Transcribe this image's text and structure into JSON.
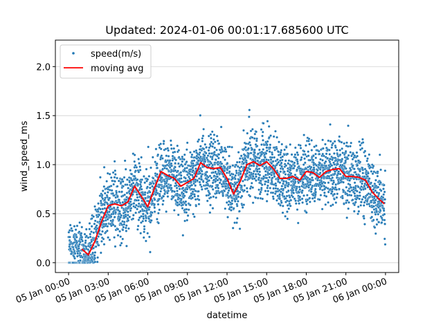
{
  "chart_data": {
    "type": "scatter",
    "title": "Updated: 2024-01-06 00:01:17.685600 UTC",
    "xlabel": "datetime",
    "ylabel": "wind_speed_ms",
    "xlim": [
      "2024-01-04T23:00:00",
      "2024-01-06T01:00:00"
    ],
    "ylim": [
      -0.1,
      2.27
    ],
    "x_ticks": [
      "05 Jan 00:00",
      "05 Jan 03:00",
      "05 Jan 06:00",
      "05 Jan 09:00",
      "05 Jan 12:00",
      "05 Jan 15:00",
      "05 Jan 18:00",
      "05 Jan 21:00",
      "06 Jan 00:00"
    ],
    "y_ticks": [
      "0.0",
      "0.5",
      "1.0",
      "1.5",
      "2.0"
    ],
    "y_tick_values": [
      0.0,
      0.5,
      1.0,
      1.5,
      2.0
    ],
    "grid": "horizontal",
    "legend": {
      "placement": "top-left",
      "entries": [
        "speed(m/s)",
        "moving avg"
      ]
    },
    "colors": {
      "scatter": "#1f77b4",
      "moving_avg": "#ff0000"
    },
    "moving_avg": {
      "name": "moving avg",
      "x": [
        "2024-01-05T01:00:00",
        "2024-01-05T01:30:00",
        "2024-01-05T02:00:00",
        "2024-01-05T02:30:00",
        "2024-01-05T03:00:00",
        "2024-01-05T03:30:00",
        "2024-01-05T04:00:00",
        "2024-01-05T04:30:00",
        "2024-01-05T05:00:00",
        "2024-01-05T05:30:00",
        "2024-01-05T06:00:00",
        "2024-01-05T06:30:00",
        "2024-01-05T07:00:00",
        "2024-01-05T07:30:00",
        "2024-01-05T08:00:00",
        "2024-01-05T08:30:00",
        "2024-01-05T09:00:00",
        "2024-01-05T09:30:00",
        "2024-01-05T10:00:00",
        "2024-01-05T10:30:00",
        "2024-01-05T11:00:00",
        "2024-01-05T11:30:00",
        "2024-01-05T12:00:00",
        "2024-01-05T12:30:00",
        "2024-01-05T13:00:00",
        "2024-01-05T13:30:00",
        "2024-01-05T14:00:00",
        "2024-01-05T14:30:00",
        "2024-01-05T15:00:00",
        "2024-01-05T15:30:00",
        "2024-01-05T16:00:00",
        "2024-01-05T16:30:00",
        "2024-01-05T17:00:00",
        "2024-01-05T17:30:00",
        "2024-01-05T18:00:00",
        "2024-01-05T18:30:00",
        "2024-01-05T19:00:00",
        "2024-01-05T19:30:00",
        "2024-01-05T20:00:00",
        "2024-01-05T20:30:00",
        "2024-01-05T21:00:00",
        "2024-01-05T21:30:00",
        "2024-01-05T22:00:00",
        "2024-01-05T22:30:00",
        "2024-01-05T23:00:00",
        "2024-01-05T23:30:00",
        "2024-01-05T23:55:00"
      ],
      "y": [
        0.14,
        0.08,
        0.22,
        0.42,
        0.58,
        0.6,
        0.58,
        0.62,
        0.78,
        0.68,
        0.57,
        0.76,
        0.93,
        0.89,
        0.86,
        0.78,
        0.82,
        0.86,
        1.02,
        0.97,
        0.96,
        0.97,
        0.86,
        0.7,
        0.83,
        1.0,
        1.03,
        0.99,
        1.03,
        0.96,
        0.86,
        0.86,
        0.88,
        0.84,
        0.93,
        0.92,
        0.87,
        0.93,
        0.95,
        0.96,
        0.88,
        0.88,
        0.87,
        0.84,
        0.72,
        0.65,
        0.6
      ]
    }
  }
}
